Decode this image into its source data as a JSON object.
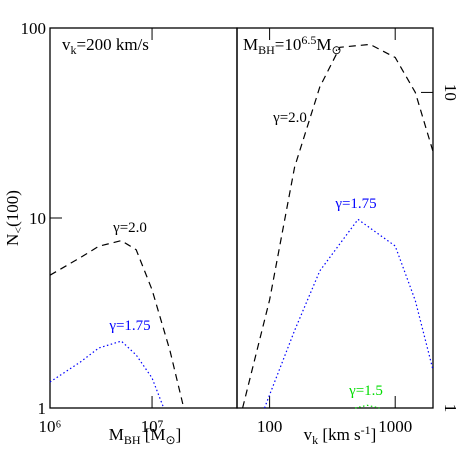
{
  "chart_data": [
    {
      "type": "line",
      "x_scale": "log",
      "y_scale": "log",
      "xlim": [
        1000000,
        68000000
      ],
      "ylim": [
        1,
        100
      ],
      "xticks": [
        {
          "value": 1000000,
          "label": "10⁶"
        },
        {
          "value": 10000000,
          "label": "10⁷"
        }
      ],
      "yticks": [
        1,
        10,
        100
      ],
      "y_axis_side": "left",
      "xlabel": [
        {
          "t": "M"
        },
        {
          "t": "BH",
          "style": "sub"
        },
        {
          "t": " [M"
        },
        {
          "t": "⊙",
          "style": "sub"
        },
        {
          "t": "]"
        }
      ],
      "ylabel": [
        {
          "t": "N"
        },
        {
          "t": "<",
          "style": "sub"
        },
        {
          "t": "(100)"
        }
      ],
      "annotation": [
        {
          "t": "v"
        },
        {
          "t": "k",
          "style": "sub"
        },
        {
          "t": "=200  km/s"
        }
      ],
      "series": [
        {
          "name": "γ=2.0",
          "color": "#000000",
          "dash": "dashed",
          "x": [
            1000000,
            2000000,
            3000000,
            5000000,
            7000000,
            10000000,
            15000000,
            20000000
          ],
          "values": [
            5.0,
            6.2,
            7.1,
            7.6,
            6.8,
            4.2,
            2.0,
            1.05
          ]
        },
        {
          "name": "γ=1.75",
          "color": "#0000ff",
          "dash": "dotted",
          "x": [
            1000000,
            2000000,
            3000000,
            5000000,
            7000000,
            10000000,
            13000000
          ],
          "values": [
            1.37,
            1.75,
            2.07,
            2.25,
            1.9,
            1.44,
            1.0
          ]
        }
      ]
    },
    {
      "type": "line",
      "x_scale": "log",
      "y_scale": "log",
      "xlim": [
        55,
        2000
      ],
      "ylim": [
        1,
        16
      ],
      "xticks": [
        100,
        1000
      ],
      "yticks": [
        1,
        10
      ],
      "y_axis_side": "right",
      "xlabel": [
        {
          "t": "v"
        },
        {
          "t": "k",
          "style": "sub"
        },
        {
          "t": " [km s"
        },
        {
          "t": "-1",
          "style": "sup"
        },
        {
          "t": "]"
        }
      ],
      "annotation": [
        {
          "t": "M"
        },
        {
          "t": "BH",
          "style": "sub"
        },
        {
          "t": "=10"
        },
        {
          "t": "6.5",
          "style": "sup"
        },
        {
          "t": "M"
        },
        {
          "t": "⊙",
          "style": "sub"
        }
      ],
      "series": [
        {
          "name": "γ=2.0",
          "color": "#000000",
          "dash": "dashed",
          "x": [
            61,
            100,
            158,
            251,
            363,
            631,
            1000,
            1445,
            2000
          ],
          "values": [
            1,
            2.2,
            5.8,
            10.4,
            13.9,
            14.2,
            12.9,
            10,
            6.5
          ]
        },
        {
          "name": "γ=1.75",
          "color": "#0000ff",
          "dash": "dotted",
          "x": [
            91,
            158,
            251,
            506,
            1000,
            1445,
            2000
          ],
          "values": [
            1,
            1.76,
            2.72,
            3.96,
            3.26,
            2.19,
            1.32
          ]
        },
        {
          "name": "γ=1.5",
          "color": "#00dd00",
          "dash": "dotted",
          "x": [
            480,
            600,
            750
          ],
          "values": [
            1,
            1.02,
            1
          ]
        }
      ]
    }
  ]
}
